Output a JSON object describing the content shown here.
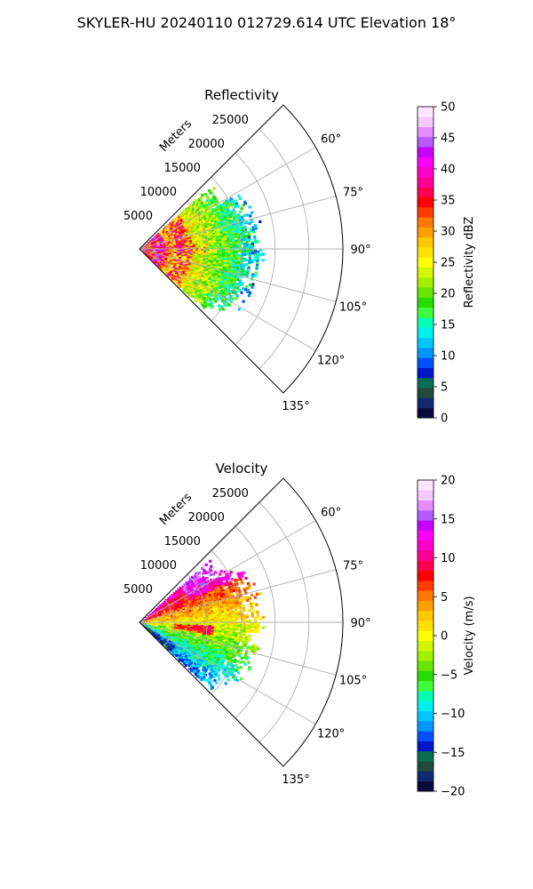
{
  "figure": {
    "title": "SKYLER-HU  20240110  012729.614 UTC Elevation 18°"
  },
  "chart_data": [
    {
      "type": "polar-sector",
      "title": "Reflectivity",
      "range_axis_label": "Meters",
      "range_ticks": [
        5000,
        10000,
        15000,
        20000,
        25000
      ],
      "range_max": 30000,
      "azimuth_range_deg": [
        45,
        135
      ],
      "azimuth_ticks": [
        "60°",
        "75°",
        "90°",
        "105°",
        "120°",
        "135°"
      ],
      "azimuth_tick_values": [
        60,
        75,
        90,
        105,
        120,
        135
      ],
      "grid": true,
      "colorbar": {
        "label": "Reflectivity dBZ",
        "ticks": [
          0,
          5,
          10,
          15,
          20,
          25,
          30,
          35,
          40,
          45,
          50
        ],
        "range": [
          0,
          50
        ],
        "colormap": "pyart_NWSRef",
        "colors": [
          "#0a0a3a",
          "#0f2a6e",
          "#1f4a3c",
          "#0a6f50",
          "#0018c8",
          "#0050ff",
          "#0096ff",
          "#00c8ff",
          "#00f0f0",
          "#00ffb4",
          "#3cff3c",
          "#28dc00",
          "#64e600",
          "#a0f000",
          "#d2f500",
          "#ffff00",
          "#ffe100",
          "#ffc800",
          "#ffa000",
          "#ff7800",
          "#ff3c00",
          "#ff0000",
          "#ff0050",
          "#ff0096",
          "#ff00c8",
          "#ff00ff",
          "#c800ff",
          "#b45aff",
          "#e68cff",
          "#f5c8ff",
          "#ffe6ff"
        ]
      },
      "echo_extent_m": 18000,
      "echo_description": "dense echo 0-15 km from 50° to 130° azimuth"
    },
    {
      "type": "polar-sector",
      "title": "Velocity",
      "range_axis_label": "Meters",
      "range_ticks": [
        5000,
        10000,
        15000,
        20000,
        25000
      ],
      "range_max": 30000,
      "azimuth_range_deg": [
        45,
        135
      ],
      "azimuth_ticks": [
        "60°",
        "75°",
        "90°",
        "105°",
        "120°",
        "135°"
      ],
      "azimuth_tick_values": [
        60,
        75,
        90,
        105,
        120,
        135
      ],
      "grid": true,
      "colorbar": {
        "label": "Velocity (m/s)",
        "ticks": [
          -20,
          -15,
          -10,
          -5,
          0,
          5,
          10,
          15,
          20
        ],
        "range": [
          -20,
          20
        ],
        "colormap": "pyart_BuDRd18",
        "colors": [
          "#0a0a3a",
          "#0f2a6e",
          "#1f4a3c",
          "#0a6f50",
          "#0018c8",
          "#0050ff",
          "#0096ff",
          "#00c8ff",
          "#00f0f0",
          "#00ffb4",
          "#3cff3c",
          "#28dc00",
          "#64e600",
          "#a0f000",
          "#d2f500",
          "#ffff00",
          "#ffe100",
          "#ffc800",
          "#ffa000",
          "#ff7800",
          "#ff3c00",
          "#ff0000",
          "#ff0050",
          "#ff0096",
          "#ff00c8",
          "#ff00ff",
          "#c800ff",
          "#b45aff",
          "#e68cff",
          "#f5c8ff",
          "#ffe6ff"
        ]
      },
      "echo_extent_m": 18000
    }
  ]
}
